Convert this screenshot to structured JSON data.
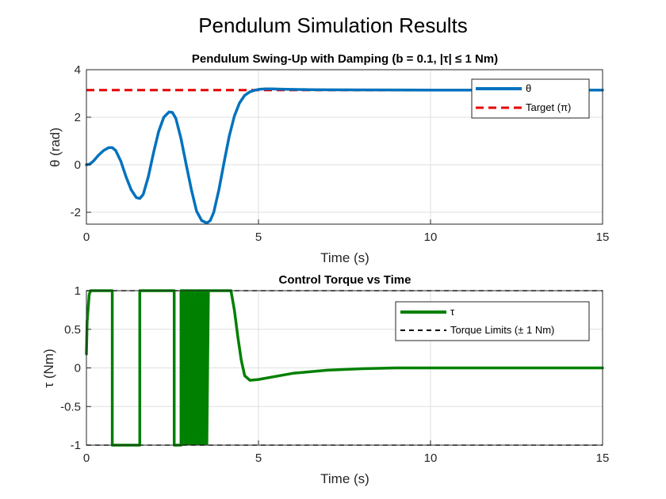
{
  "figure": {
    "title": "Pendulum Simulation Results"
  },
  "chart_data": [
    {
      "type": "line",
      "title": "Pendulum Swing-Up with Damping (b = 0.1, |τ| ≤ 1 Nm)",
      "xlabel": "Time (s)",
      "ylabel": "θ (rad)",
      "xlim": [
        0,
        15
      ],
      "ylim": [
        -2.5,
        4
      ],
      "xticks": [
        "0",
        "5",
        "10",
        "15"
      ],
      "yticks": [
        "-2",
        "0",
        "2",
        "4"
      ],
      "grid": true,
      "legend_position": "top-right",
      "series": [
        {
          "name": "θ",
          "color": "#0072BD",
          "style": "solid",
          "x": [
            0,
            0.1,
            0.2,
            0.35,
            0.5,
            0.65,
            0.75,
            0.85,
            1.0,
            1.15,
            1.3,
            1.45,
            1.55,
            1.65,
            1.8,
            1.95,
            2.1,
            2.25,
            2.4,
            2.5,
            2.6,
            2.75,
            2.9,
            3.05,
            3.2,
            3.35,
            3.5,
            3.6,
            3.7,
            3.85,
            4.0,
            4.15,
            4.3,
            4.45,
            4.6,
            4.75,
            4.9,
            5.05,
            5.2,
            5.4,
            5.7,
            6.0,
            6.5,
            7.0,
            8.0,
            10.0,
            12.5,
            15.0
          ],
          "y": [
            0.0,
            0.03,
            0.15,
            0.4,
            0.6,
            0.72,
            0.72,
            0.6,
            0.15,
            -0.5,
            -1.05,
            -1.38,
            -1.42,
            -1.25,
            -0.5,
            0.5,
            1.4,
            2.0,
            2.22,
            2.2,
            1.95,
            1.1,
            0.0,
            -1.05,
            -1.95,
            -2.35,
            -2.45,
            -2.35,
            -2.0,
            -1.05,
            0.1,
            1.2,
            2.05,
            2.6,
            2.92,
            3.07,
            3.14,
            3.18,
            3.19,
            3.19,
            3.18,
            3.17,
            3.16,
            3.155,
            3.15,
            3.145,
            3.142,
            3.142
          ]
        },
        {
          "name": "Target (π)",
          "color": "#E60000",
          "style": "dashed",
          "x": [
            0,
            15
          ],
          "y": [
            3.1416,
            3.1416
          ]
        }
      ]
    },
    {
      "type": "line",
      "title": "Control Torque vs Time",
      "xlabel": "Time (s)",
      "ylabel": "τ (Nm)",
      "xlim": [
        0,
        15
      ],
      "ylim": [
        -1,
        1
      ],
      "xticks": [
        "0",
        "5",
        "10",
        "15"
      ],
      "yticks": [
        "-1",
        "-0.5",
        "0",
        "0.5",
        "1"
      ],
      "grid": true,
      "legend_position": "top-right",
      "series": [
        {
          "name": "τ",
          "color": "#008000",
          "style": "solid",
          "x": [
            0,
            0.02,
            0.08,
            0.12,
            0.75,
            0.75,
            1.55,
            1.55,
            2.55,
            2.55,
            2.75,
            2.75,
            4.2,
            4.3,
            4.4,
            4.5,
            4.6,
            4.75,
            5.0,
            5.5,
            6.0,
            7.0,
            8.0,
            9.0,
            10.0,
            15.0
          ],
          "y": [
            0.18,
            0.6,
            0.95,
            1,
            1,
            -1,
            -1,
            1,
            1,
            -1,
            -1,
            1,
            1,
            0.75,
            0.4,
            0.1,
            -0.1,
            -0.16,
            -0.15,
            -0.11,
            -0.07,
            -0.03,
            -0.01,
            0.0,
            0.0,
            0.0
          ]
        },
        {
          "name": "Torque Limits (± 1 Nm)",
          "color": "#000000",
          "style": "dashed",
          "x": [
            0,
            15
          ],
          "y": [
            1,
            1
          ]
        },
        {
          "name": "",
          "color": "#000000",
          "style": "dashed",
          "x": [
            0,
            15
          ],
          "y": [
            -1,
            -1
          ]
        }
      ],
      "oscillation_band": {
        "x_range": [
          2.75,
          3.55
        ],
        "y_range": [
          -1,
          1
        ],
        "color": "#008000"
      }
    }
  ]
}
